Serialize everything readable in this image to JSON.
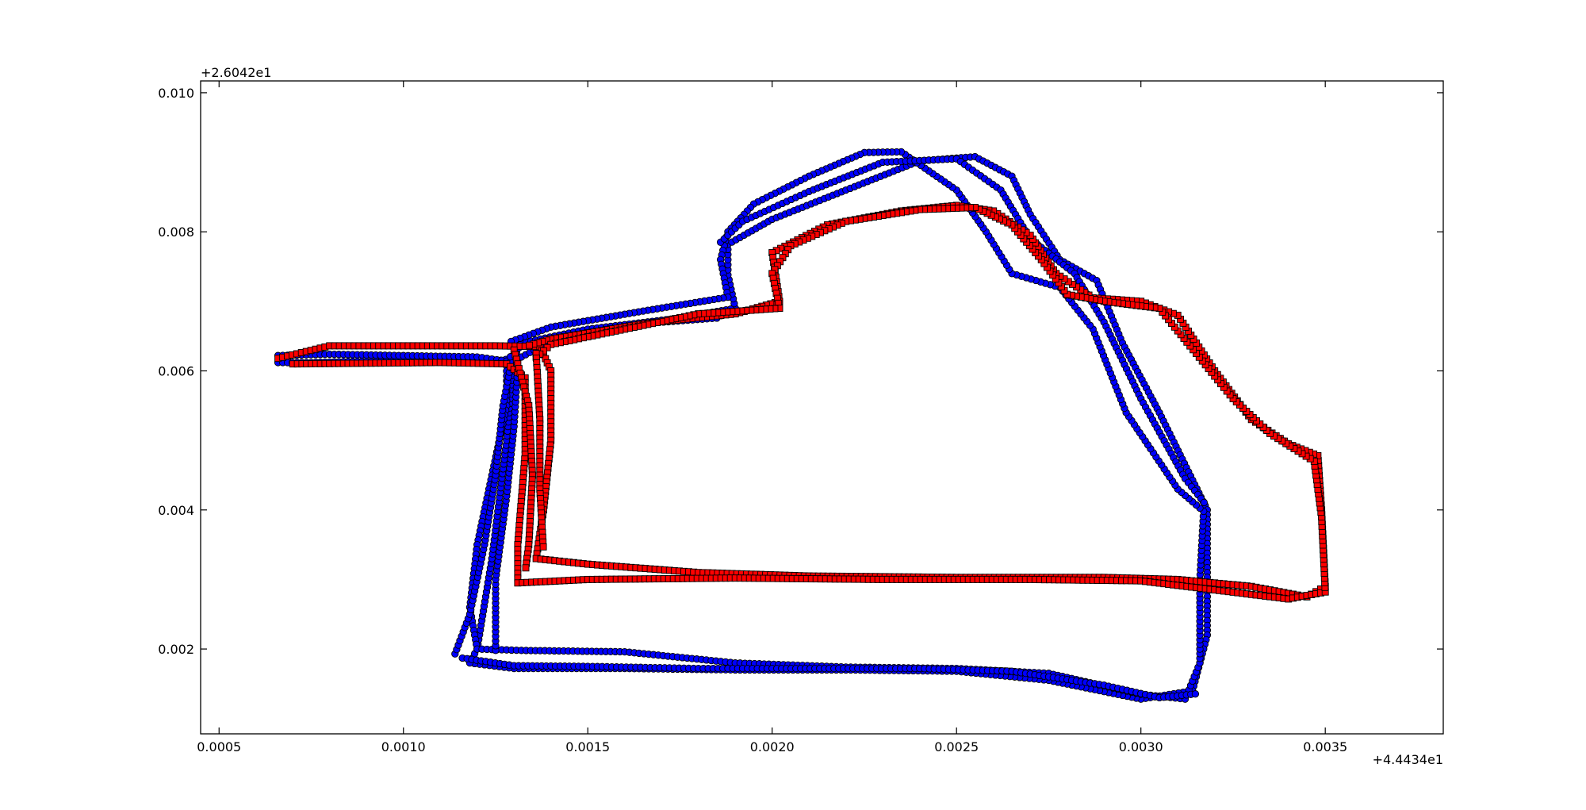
{
  "chart_data": {
    "type": "scatter",
    "title": "",
    "xlabel": "",
    "ylabel": "",
    "xlim": [
      0.00045,
      0.00382
    ],
    "ylim": [
      0.00078,
      0.01017
    ],
    "x_offset_label": "+4.4434e1",
    "y_offset_label": "+2.6042e1",
    "x_ticks": [
      {
        "value": 0.0005,
        "label": "0.0005"
      },
      {
        "value": 0.001,
        "label": "0.0010"
      },
      {
        "value": 0.0015,
        "label": "0.0015"
      },
      {
        "value": 0.002,
        "label": "0.0020"
      },
      {
        "value": 0.0025,
        "label": "0.0025"
      },
      {
        "value": 0.003,
        "label": "0.0030"
      },
      {
        "value": 0.0035,
        "label": "0.0035"
      }
    ],
    "y_ticks": [
      {
        "value": 0.002,
        "label": "0.002"
      },
      {
        "value": 0.004,
        "label": "0.004"
      },
      {
        "value": 0.006,
        "label": "0.006"
      },
      {
        "value": 0.008,
        "label": "0.008"
      },
      {
        "value": 0.01,
        "label": "0.010"
      }
    ],
    "grid": false,
    "legend": "none",
    "series": [
      {
        "marker": "circle",
        "color": "#0000ff",
        "edge_color": "#000000",
        "tracks": [
          [
            [
              0.00066,
              0.00612
            ],
            [
              0.00075,
              0.00612
            ],
            [
              0.0009,
              0.00614
            ],
            [
              0.0011,
              0.00614
            ],
            [
              0.00125,
              0.00614
            ],
            [
              0.00132,
              0.0062
            ],
            [
              0.0014,
              0.00643
            ],
            [
              0.0016,
              0.00666
            ],
            [
              0.00185,
              0.00676
            ],
            [
              0.0019,
              0.0069
            ],
            [
              0.00188,
              0.00738
            ],
            [
              0.00188,
              0.00782
            ],
            [
              0.002,
              0.00818
            ],
            [
              0.0022,
              0.0086
            ],
            [
              0.0024,
              0.00902
            ],
            [
              0.00255,
              0.00908
            ],
            [
              0.00265,
              0.0088
            ],
            [
              0.0027,
              0.00825
            ],
            [
              0.00278,
              0.0076
            ],
            [
              0.00288,
              0.0073
            ],
            [
              0.00295,
              0.0064
            ],
            [
              0.00305,
              0.0054
            ],
            [
              0.00318,
              0.004
            ],
            [
              0.00318,
              0.0022
            ],
            [
              0.00314,
              0.0014
            ],
            [
              0.003,
              0.00128
            ],
            [
              0.00275,
              0.00155
            ],
            [
              0.0025,
              0.00168
            ],
            [
              0.0022,
              0.0017
            ],
            [
              0.0019,
              0.0017
            ],
            [
              0.0016,
              0.00172
            ],
            [
              0.0013,
              0.00172
            ],
            [
              0.00118,
              0.0018
            ],
            [
              0.0012,
              0.002
            ],
            [
              0.00124,
              0.0033
            ],
            [
              0.00128,
              0.005
            ],
            [
              0.0013,
              0.0062
            ],
            [
              0.00132,
              0.0064
            ],
            [
              0.0015,
              0.0066
            ],
            [
              0.00175,
              0.00676
            ],
            [
              0.0019,
              0.0069
            ]
          ],
          [
            [
              0.00066,
              0.00622
            ],
            [
              0.0008,
              0.00624
            ],
            [
              0.001,
              0.00622
            ],
            [
              0.0012,
              0.0062
            ],
            [
              0.00128,
              0.00614
            ],
            [
              0.00128,
              0.0055
            ],
            [
              0.00124,
              0.0045
            ],
            [
              0.0012,
              0.0035
            ],
            [
              0.00118,
              0.0026
            ],
            [
              0.0012,
              0.002
            ],
            [
              0.00132,
              0.00198
            ],
            [
              0.0016,
              0.00196
            ],
            [
              0.0019,
              0.0018
            ],
            [
              0.0022,
              0.00174
            ],
            [
              0.0025,
              0.00172
            ],
            [
              0.00275,
              0.00165
            ],
            [
              0.003,
              0.00135
            ],
            [
              0.00312,
              0.00128
            ],
            [
              0.00316,
              0.0018
            ],
            [
              0.00316,
              0.003
            ],
            [
              0.00317,
              0.00398
            ],
            [
              0.0031,
              0.0043
            ],
            [
              0.00296,
              0.0054
            ],
            [
              0.00287,
              0.0066
            ],
            [
              0.00278,
              0.0072
            ],
            [
              0.00265,
              0.0074
            ],
            [
              0.00258,
              0.008
            ],
            [
              0.0025,
              0.0086
            ],
            [
              0.00235,
              0.00915
            ],
            [
              0.00225,
              0.00914
            ],
            [
              0.0021,
              0.0088
            ],
            [
              0.00195,
              0.0084
            ],
            [
              0.00188,
              0.008
            ],
            [
              0.00186,
              0.0076
            ],
            [
              0.00188,
              0.00706
            ],
            [
              0.00165,
              0.00686
            ],
            [
              0.0014,
              0.00663
            ],
            [
              0.00128,
              0.0064
            ]
          ],
          [
            [
              0.00114,
              0.00193
            ],
            [
              0.00118,
              0.0025
            ],
            [
              0.00122,
              0.0035
            ],
            [
              0.00125,
              0.0045
            ],
            [
              0.00127,
              0.0055
            ],
            [
              0.00129,
              0.00605
            ],
            [
              0.00129,
              0.00628
            ]
          ],
          [
            [
              0.00125,
              0.00198
            ],
            [
              0.00125,
              0.003
            ],
            [
              0.00128,
              0.0042
            ],
            [
              0.0013,
              0.0052
            ],
            [
              0.00131,
              0.00605
            ]
          ],
          [
            [
              0.00186,
              0.00785
            ],
            [
              0.00192,
              0.00815
            ],
            [
              0.0021,
              0.00858
            ],
            [
              0.0023,
              0.009
            ],
            [
              0.0025,
              0.00905
            ],
            [
              0.00262,
              0.0086
            ],
            [
              0.0027,
              0.0079
            ],
            [
              0.00282,
              0.0074
            ],
            [
              0.0029,
              0.0067
            ],
            [
              0.003,
              0.0056
            ],
            [
              0.00312,
              0.00445
            ],
            [
              0.00318,
              0.00405
            ]
          ],
          [
            [
              0.00116,
              0.00187
            ],
            [
              0.0013,
              0.00176
            ],
            [
              0.0015,
              0.00175
            ],
            [
              0.0018,
              0.00172
            ],
            [
              0.002,
              0.00172
            ],
            [
              0.0024,
              0.00172
            ],
            [
              0.00265,
              0.00168
            ],
            [
              0.0029,
              0.00148
            ],
            [
              0.00305,
              0.0013
            ],
            [
              0.00316,
              0.00136
            ]
          ]
        ]
      },
      {
        "marker": "square",
        "color": "#ff0000",
        "edge_color": "#000000",
        "tracks": [
          [
            [
              0.00066,
              0.00618
            ],
            [
              0.0008,
              0.00636
            ],
            [
              0.001,
              0.00636
            ],
            [
              0.00125,
              0.00636
            ],
            [
              0.00137,
              0.00635
            ],
            [
              0.0014,
              0.006
            ],
            [
              0.0014,
              0.005
            ],
            [
              0.00138,
              0.004
            ],
            [
              0.00136,
              0.0033
            ],
            [
              0.0015,
              0.00322
            ],
            [
              0.0018,
              0.0031
            ],
            [
              0.0021,
              0.00305
            ],
            [
              0.0025,
              0.00303
            ],
            [
              0.0029,
              0.00303
            ],
            [
              0.0031,
              0.003
            ],
            [
              0.0033,
              0.0029
            ],
            [
              0.00345,
              0.00275
            ],
            [
              0.0035,
              0.0029
            ],
            [
              0.00349,
              0.004
            ],
            [
              0.00348,
              0.00478
            ],
            [
              0.0034,
              0.00495
            ],
            [
              0.0033,
              0.0053
            ],
            [
              0.0032,
              0.006
            ],
            [
              0.0031,
              0.0068
            ],
            [
              0.003,
              0.007
            ],
            [
              0.00287,
              0.00705
            ],
            [
              0.00277,
              0.0074
            ],
            [
              0.0027,
              0.00795
            ],
            [
              0.0026,
              0.0083
            ],
            [
              0.0025,
              0.00838
            ],
            [
              0.00235,
              0.0083
            ],
            [
              0.00215,
              0.0081
            ],
            [
              0.002,
              0.0077
            ],
            [
              0.00202,
              0.007
            ],
            [
              0.0019,
              0.00682
            ],
            [
              0.00165,
              0.00668
            ],
            [
              0.0014,
              0.00646
            ],
            [
              0.00133,
              0.00635
            ]
          ],
          [
            [
              0.0007,
              0.0061
            ],
            [
              0.0009,
              0.00611
            ],
            [
              0.0011,
              0.00612
            ],
            [
              0.00128,
              0.0061
            ],
            [
              0.00133,
              0.0059
            ],
            [
              0.00133,
              0.0048
            ],
            [
              0.00131,
              0.0035
            ],
            [
              0.00131,
              0.00295
            ],
            [
              0.0015,
              0.003
            ],
            [
              0.0019,
              0.00302
            ],
            [
              0.0023,
              0.003
            ],
            [
              0.0027,
              0.003
            ],
            [
              0.003,
              0.00298
            ],
            [
              0.0032,
              0.00285
            ],
            [
              0.0034,
              0.00272
            ],
            [
              0.0035,
              0.00282
            ],
            [
              0.00349,
              0.0039
            ],
            [
              0.00347,
              0.0047
            ],
            [
              0.00335,
              0.0051
            ],
            [
              0.00325,
              0.0056
            ],
            [
              0.00315,
              0.00625
            ],
            [
              0.00305,
              0.0069
            ],
            [
              0.0029,
              0.007
            ],
            [
              0.0028,
              0.0071
            ],
            [
              0.00273,
              0.0076
            ],
            [
              0.00265,
              0.0081
            ],
            [
              0.00255,
              0.00835
            ],
            [
              0.0024,
              0.00832
            ],
            [
              0.0022,
              0.00815
            ],
            [
              0.00205,
              0.0078
            ],
            [
              0.002,
              0.0074
            ],
            [
              0.00202,
              0.0069
            ],
            [
              0.0018,
              0.00682
            ],
            [
              0.0016,
              0.0066
            ],
            [
              0.0014,
              0.00638
            ],
            [
              0.00135,
              0.00615
            ]
          ],
          [
            [
              0.0013,
              0.0063
            ],
            [
              0.00134,
              0.0055
            ],
            [
              0.00135,
              0.0045
            ],
            [
              0.00134,
              0.0035
            ],
            [
              0.00133,
              0.0031
            ]
          ],
          [
            [
              0.00136,
              0.00625
            ],
            [
              0.00137,
              0.0053
            ],
            [
              0.00137,
              0.0043
            ],
            [
              0.00138,
              0.0034
            ]
          ]
        ]
      }
    ]
  }
}
